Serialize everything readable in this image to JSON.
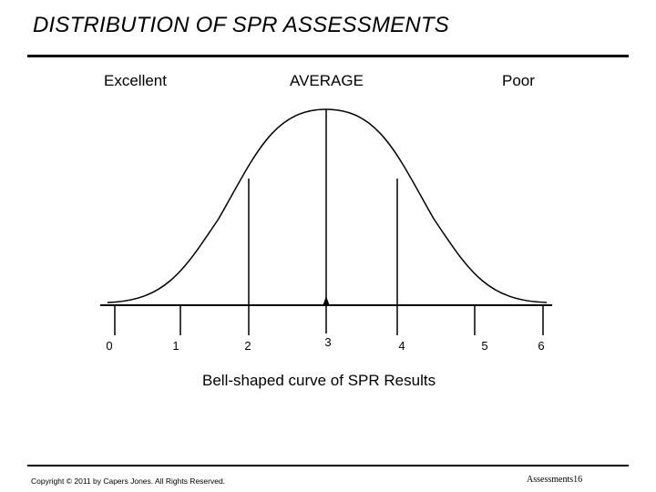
{
  "title": "DISTRIBUTION OF SPR ASSESSMENTS",
  "header": {
    "left_label": "Excellent",
    "center_label": "AVERAGE",
    "right_label": "Poor"
  },
  "axis": {
    "ticks": [
      "0",
      "1",
      "2",
      "3",
      "4",
      "5",
      "6"
    ]
  },
  "caption": "Bell-shaped curve of SPR Results",
  "footer": {
    "copyright": "Copyright © 2011 by Capers Jones.  All Rights Reserved.",
    "slide_label": "Assessments16"
  }
}
